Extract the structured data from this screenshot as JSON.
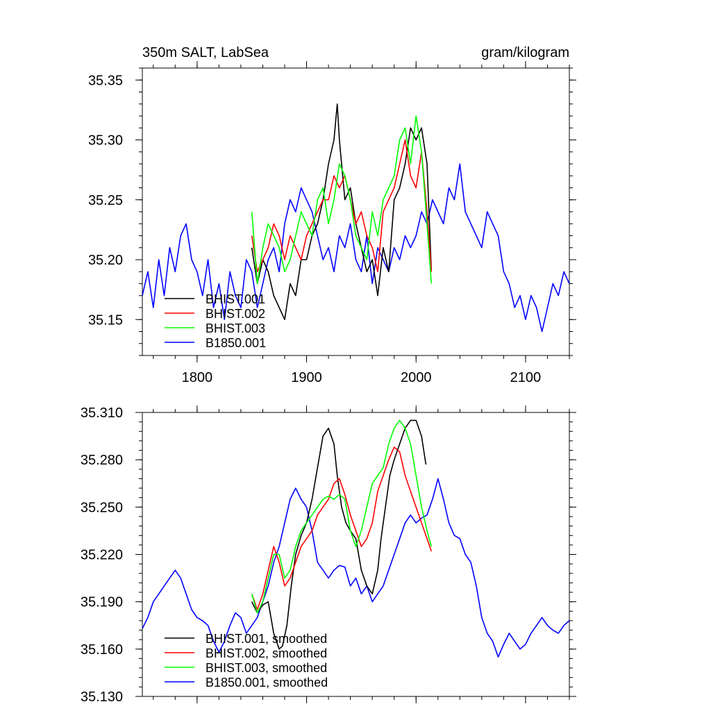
{
  "colors": {
    "BHIST.001": "#000000",
    "BHIST.002": "#ff0000",
    "BHIST.003": "#00ff00",
    "B1850.001": "#0000ff"
  },
  "chart_data": [
    {
      "type": "line",
      "title": "350m SALT, LabSea",
      "units": "gram/kilogram",
      "xlim": [
        1750,
        2140
      ],
      "ylim": [
        35.12,
        35.36
      ],
      "xticks": [
        1800,
        1900,
        2000,
        2100
      ],
      "xtick_labels": [
        "1800",
        "1900",
        "2000",
        "2100"
      ],
      "yticks": [
        35.15,
        35.2,
        35.25,
        35.3,
        35.35
      ],
      "ytick_labels": [
        "35.15",
        "35.20",
        "35.25",
        "35.30",
        "35.35"
      ],
      "legend": "bottom-left",
      "series": [
        {
          "name": "BHIST.001",
          "x": [
            1850,
            1855,
            1860,
            1865,
            1870,
            1875,
            1880,
            1885,
            1890,
            1895,
            1900,
            1905,
            1910,
            1915,
            1920,
            1925,
            1928,
            1930,
            1935,
            1940,
            1945,
            1950,
            1955,
            1960,
            1965,
            1970,
            1975,
            1980,
            1985,
            1990,
            1995,
            2000,
            2005,
            2010,
            2014
          ],
          "y": [
            35.21,
            35.18,
            35.2,
            35.19,
            35.17,
            35.16,
            35.15,
            35.18,
            35.17,
            35.2,
            35.2,
            35.22,
            35.23,
            35.25,
            35.28,
            35.3,
            35.33,
            35.3,
            35.25,
            35.26,
            35.23,
            35.21,
            35.19,
            35.2,
            35.17,
            35.21,
            35.19,
            35.25,
            35.26,
            35.28,
            35.31,
            35.3,
            35.31,
            35.28,
            35.19
          ]
        },
        {
          "name": "BHIST.002",
          "x": [
            1850,
            1855,
            1860,
            1865,
            1870,
            1875,
            1880,
            1885,
            1890,
            1895,
            1900,
            1905,
            1910,
            1915,
            1920,
            1925,
            1930,
            1935,
            1940,
            1945,
            1950,
            1955,
            1960,
            1965,
            1970,
            1975,
            1980,
            1985,
            1990,
            1995,
            2000,
            2005,
            2010,
            2014
          ],
          "y": [
            35.22,
            35.19,
            35.2,
            35.21,
            35.23,
            35.22,
            35.2,
            35.22,
            35.21,
            35.2,
            35.22,
            35.23,
            35.24,
            35.25,
            35.25,
            35.27,
            35.26,
            35.27,
            35.25,
            35.23,
            35.24,
            35.22,
            35.21,
            35.19,
            35.24,
            35.25,
            35.26,
            35.28,
            35.3,
            35.27,
            35.26,
            35.29,
            35.24,
            35.19
          ]
        },
        {
          "name": "BHIST.003",
          "x": [
            1850,
            1855,
            1860,
            1865,
            1870,
            1875,
            1880,
            1885,
            1890,
            1895,
            1900,
            1905,
            1910,
            1915,
            1920,
            1925,
            1930,
            1935,
            1940,
            1945,
            1950,
            1955,
            1960,
            1965,
            1970,
            1975,
            1980,
            1985,
            1990,
            1995,
            2000,
            2005,
            2010,
            2014
          ],
          "y": [
            35.24,
            35.18,
            35.21,
            35.23,
            35.22,
            35.21,
            35.19,
            35.2,
            35.22,
            35.24,
            35.23,
            35.22,
            35.25,
            35.26,
            35.23,
            35.25,
            35.28,
            35.27,
            35.25,
            35.22,
            35.21,
            35.2,
            35.24,
            35.22,
            35.25,
            35.26,
            35.27,
            35.3,
            35.31,
            35.28,
            35.32,
            35.29,
            35.23,
            35.18
          ]
        },
        {
          "name": "B1850.001",
          "x": [
            1750,
            1755,
            1760,
            1765,
            1770,
            1775,
            1780,
            1785,
            1790,
            1795,
            1800,
            1805,
            1810,
            1815,
            1820,
            1825,
            1830,
            1835,
            1840,
            1845,
            1850,
            1855,
            1860,
            1865,
            1870,
            1875,
            1880,
            1885,
            1890,
            1895,
            1900,
            1905,
            1910,
            1915,
            1920,
            1925,
            1930,
            1935,
            1940,
            1945,
            1950,
            1955,
            1960,
            1965,
            1970,
            1975,
            1980,
            1985,
            1990,
            1995,
            2000,
            2005,
            2010,
            2015,
            2020,
            2025,
            2030,
            2035,
            2040,
            2045,
            2050,
            2055,
            2060,
            2065,
            2070,
            2075,
            2080,
            2085,
            2090,
            2095,
            2100,
            2105,
            2110,
            2115,
            2120,
            2125,
            2130,
            2135,
            2140
          ],
          "y": [
            35.17,
            35.19,
            35.16,
            35.2,
            35.17,
            35.21,
            35.19,
            35.22,
            35.23,
            35.2,
            35.19,
            35.17,
            35.2,
            35.16,
            35.18,
            35.15,
            35.19,
            35.17,
            35.16,
            35.2,
            35.19,
            35.16,
            35.18,
            35.2,
            35.21,
            35.19,
            35.23,
            35.25,
            35.24,
            35.26,
            35.25,
            35.24,
            35.22,
            35.2,
            35.21,
            35.19,
            35.22,
            35.21,
            35.23,
            35.2,
            35.19,
            35.22,
            35.18,
            35.21,
            35.2,
            35.19,
            35.21,
            35.2,
            35.22,
            35.21,
            35.22,
            35.24,
            35.23,
            35.25,
            35.24,
            35.23,
            35.26,
            35.25,
            35.28,
            35.24,
            35.23,
            35.22,
            35.21,
            35.24,
            35.23,
            35.22,
            35.19,
            35.18,
            35.16,
            35.17,
            35.15,
            35.17,
            35.16,
            35.14,
            35.16,
            35.18,
            35.17,
            35.19,
            35.18
          ]
        }
      ]
    },
    {
      "type": "line",
      "title": "",
      "xlim": [
        1750,
        2140
      ],
      "ylim": [
        35.13,
        35.31
      ],
      "xticks": [
        1800,
        1900,
        2000,
        2100
      ],
      "yticks": [
        35.13,
        35.16,
        35.19,
        35.22,
        35.25,
        35.28,
        35.31
      ],
      "ytick_labels": [
        "35.130",
        "35.160",
        "35.190",
        "35.220",
        "35.250",
        "35.280",
        "35.310"
      ],
      "legend": "bottom-left",
      "series": [
        {
          "name": "BHIST.001, smoothed",
          "x": [
            1850,
            1855,
            1860,
            1865,
            1870,
            1875,
            1878,
            1882,
            1886,
            1890,
            1895,
            1900,
            1905,
            1910,
            1915,
            1920,
            1925,
            1928,
            1932,
            1936,
            1940,
            1945,
            1950,
            1955,
            1960,
            1965,
            1968,
            1972,
            1976,
            1980,
            1985,
            1990,
            1995,
            2000,
            2005,
            2009
          ],
          "y": [
            35.19,
            35.183,
            35.188,
            35.19,
            35.17,
            35.16,
            35.162,
            35.175,
            35.2,
            35.22,
            35.232,
            35.24,
            35.255,
            35.275,
            35.295,
            35.3,
            35.29,
            35.27,
            35.25,
            35.24,
            35.235,
            35.23,
            35.21,
            35.2,
            35.195,
            35.21,
            35.23,
            35.25,
            35.27,
            35.28,
            35.29,
            35.3,
            35.305,
            35.305,
            35.295,
            35.277
          ]
        },
        {
          "name": "BHIST.002, smoothed",
          "x": [
            1850,
            1855,
            1860,
            1865,
            1870,
            1875,
            1880,
            1885,
            1890,
            1895,
            1900,
            1905,
            1910,
            1915,
            1920,
            1925,
            1930,
            1935,
            1940,
            1945,
            1950,
            1955,
            1960,
            1965,
            1970,
            1975,
            1980,
            1985,
            1990,
            1995,
            2000,
            2005,
            2010,
            2014
          ],
          "y": [
            35.195,
            35.185,
            35.195,
            35.21,
            35.225,
            35.215,
            35.2,
            35.205,
            35.215,
            35.225,
            35.23,
            35.235,
            35.245,
            35.25,
            35.255,
            35.265,
            35.268,
            35.258,
            35.245,
            35.235,
            35.225,
            35.23,
            35.24,
            35.26,
            35.27,
            35.28,
            35.288,
            35.285,
            35.27,
            35.26,
            35.25,
            35.24,
            35.23,
            35.222
          ]
        },
        {
          "name": "BHIST.003, smoothed",
          "x": [
            1850,
            1855,
            1860,
            1865,
            1870,
            1875,
            1880,
            1885,
            1890,
            1895,
            1900,
            1905,
            1910,
            1915,
            1920,
            1925,
            1930,
            1935,
            1940,
            1945,
            1950,
            1955,
            1960,
            1965,
            1970,
            1975,
            1980,
            1985,
            1990,
            1995,
            2000,
            2005,
            2010,
            2014
          ],
          "y": [
            35.195,
            35.183,
            35.19,
            35.205,
            35.22,
            35.22,
            35.205,
            35.21,
            35.225,
            35.235,
            35.24,
            35.245,
            35.25,
            35.255,
            35.257,
            35.255,
            35.258,
            35.255,
            35.235,
            35.225,
            35.235,
            35.25,
            35.265,
            35.27,
            35.275,
            35.29,
            35.3,
            35.305,
            35.3,
            35.29,
            35.27,
            35.25,
            35.235,
            35.225
          ]
        },
        {
          "name": "B1850.001, smoothed",
          "x": [
            1750,
            1755,
            1760,
            1765,
            1770,
            1775,
            1780,
            1785,
            1790,
            1795,
            1800,
            1805,
            1810,
            1815,
            1820,
            1825,
            1830,
            1835,
            1840,
            1845,
            1850,
            1855,
            1860,
            1865,
            1870,
            1875,
            1880,
            1885,
            1890,
            1895,
            1900,
            1905,
            1910,
            1915,
            1920,
            1925,
            1930,
            1935,
            1940,
            1945,
            1950,
            1955,
            1960,
            1965,
            1970,
            1975,
            1980,
            1985,
            1990,
            1995,
            2000,
            2005,
            2010,
            2015,
            2020,
            2025,
            2030,
            2035,
            2040,
            2045,
            2050,
            2055,
            2060,
            2065,
            2070,
            2075,
            2080,
            2085,
            2090,
            2095,
            2100,
            2105,
            2110,
            2115,
            2120,
            2125,
            2130,
            2135,
            2140
          ],
          "y": [
            35.173,
            35.18,
            35.19,
            35.195,
            35.2,
            35.205,
            35.21,
            35.205,
            35.195,
            35.185,
            35.18,
            35.178,
            35.175,
            35.165,
            35.158,
            35.165,
            35.175,
            35.183,
            35.18,
            35.17,
            35.175,
            35.18,
            35.19,
            35.2,
            35.215,
            35.225,
            35.24,
            35.255,
            35.262,
            35.255,
            35.25,
            35.235,
            35.215,
            35.21,
            35.205,
            35.21,
            35.213,
            35.212,
            35.2,
            35.205,
            35.195,
            35.2,
            35.19,
            35.195,
            35.2,
            35.21,
            35.22,
            35.23,
            35.24,
            35.245,
            35.24,
            35.243,
            35.245,
            35.255,
            35.268,
            35.255,
            35.24,
            35.232,
            35.23,
            35.22,
            35.215,
            35.2,
            35.18,
            35.17,
            35.165,
            35.155,
            35.163,
            35.17,
            35.165,
            35.16,
            35.163,
            35.17,
            35.175,
            35.18,
            35.175,
            35.172,
            35.17,
            35.175,
            35.178
          ]
        }
      ]
    }
  ]
}
